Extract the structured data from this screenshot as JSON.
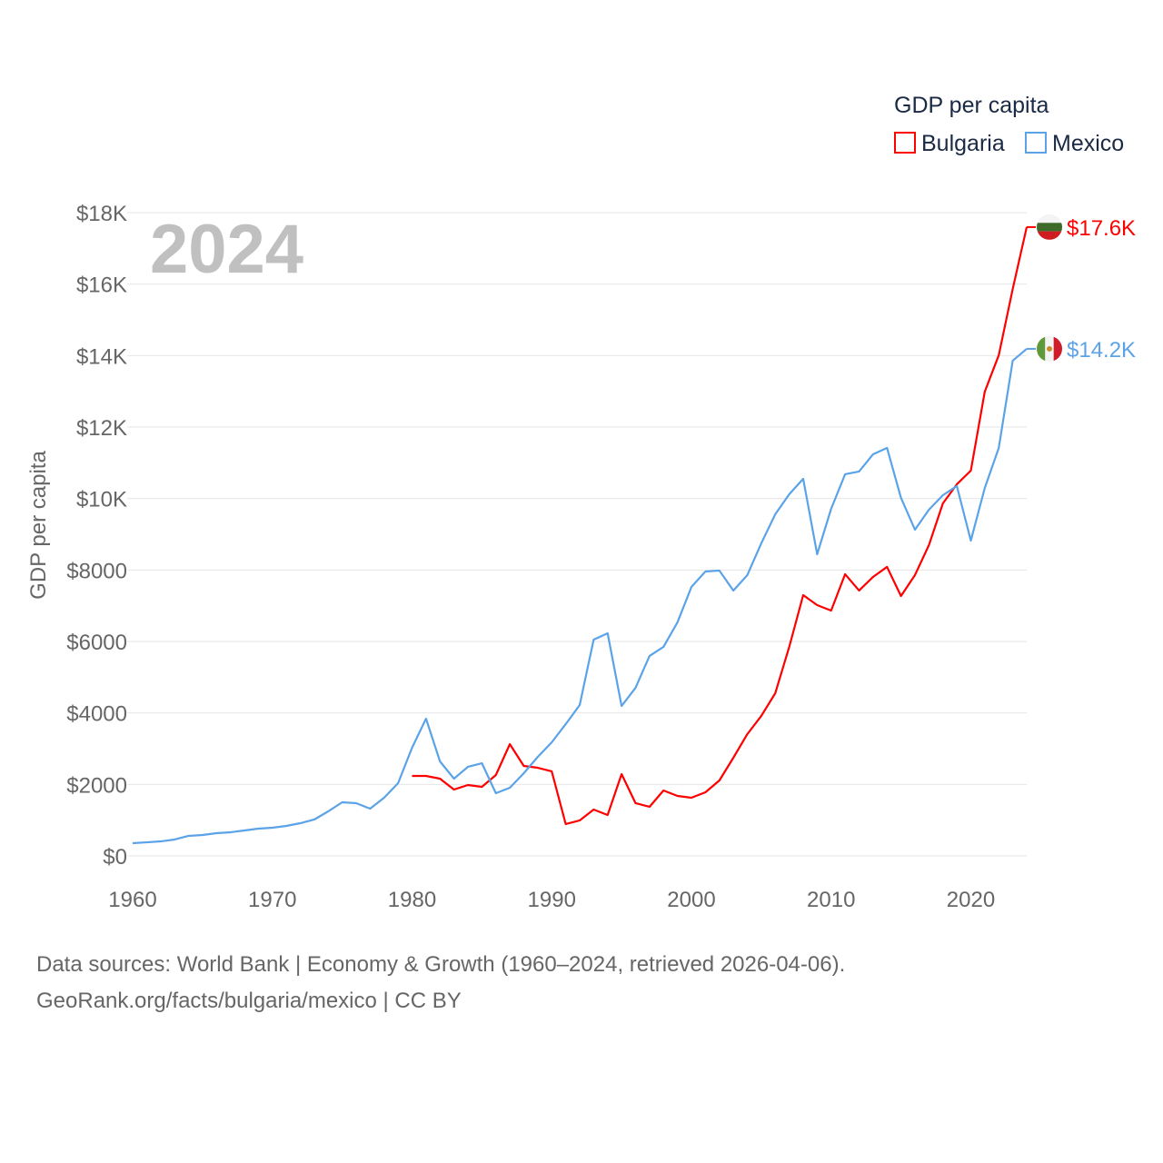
{
  "chart_data": {
    "type": "line",
    "title": "GDP per capita",
    "year_label": "2024",
    "ylabel": "GDP per capita",
    "xlabel": "",
    "xlim": [
      1960,
      2024
    ],
    "ylim": [
      0,
      18000
    ],
    "x_ticks": [
      "1960",
      "1970",
      "1980",
      "1990",
      "2000",
      "2010",
      "2020"
    ],
    "x_tick_values": [
      1960,
      1970,
      1980,
      1990,
      2000,
      2010,
      2020
    ],
    "y_ticks": [
      "$0",
      "$2000",
      "$4000",
      "$6000",
      "$8000",
      "$10K",
      "$12K",
      "$14K",
      "$16K",
      "$18K"
    ],
    "y_tick_values": [
      0,
      2000,
      4000,
      6000,
      8000,
      10000,
      12000,
      14000,
      16000,
      18000
    ],
    "grid": true,
    "legend_position": "top-right",
    "series": [
      {
        "name": "Bulgaria",
        "color": "#ff0000",
        "end_label": "$17.6K",
        "start_year": 1980,
        "values": [
          2237,
          2237,
          2161,
          1856,
          1983,
          1932,
          2263,
          3127,
          2517,
          2466,
          2365,
          890,
          992,
          1297,
          1144,
          2288,
          1475,
          1373,
          1831,
          1678,
          1627,
          1780,
          2110,
          2746,
          3407,
          3916,
          4551,
          5848,
          7297,
          7017,
          6865,
          7882,
          7425,
          7806,
          8086,
          7272,
          7857,
          8696,
          9865,
          10399,
          10780,
          12992,
          14010,
          15866,
          17595
        ]
      },
      {
        "name": "Mexico",
        "color": "#5ba3e8",
        "end_label": "$14.2K",
        "start_year": 1960,
        "values": [
          356,
          380,
          406,
          458,
          560,
          585,
          636,
          661,
          712,
          763,
          788,
          839,
          915,
          1017,
          1246,
          1500,
          1475,
          1322,
          1627,
          2034,
          3026,
          3840,
          2644,
          2161,
          2492,
          2593,
          1754,
          1907,
          2314,
          2771,
          3178,
          3687,
          4221,
          6051,
          6229,
          4195,
          4704,
          5594,
          5848,
          6535,
          7526,
          7958,
          7984,
          7425,
          7857,
          8747,
          9560,
          10119,
          10551,
          8441,
          9712,
          10679,
          10755,
          11238,
          11416,
          10018,
          9128,
          9687,
          10093,
          10348,
          8823,
          10297,
          11416,
          13857,
          14188
        ]
      }
    ]
  },
  "footer": {
    "line1": "Data sources: World Bank | Economy & Growth (1960–2024, retrieved 2026-04-06).",
    "line2": "GeoRank.org/facts/bulgaria/mexico | CC BY"
  }
}
